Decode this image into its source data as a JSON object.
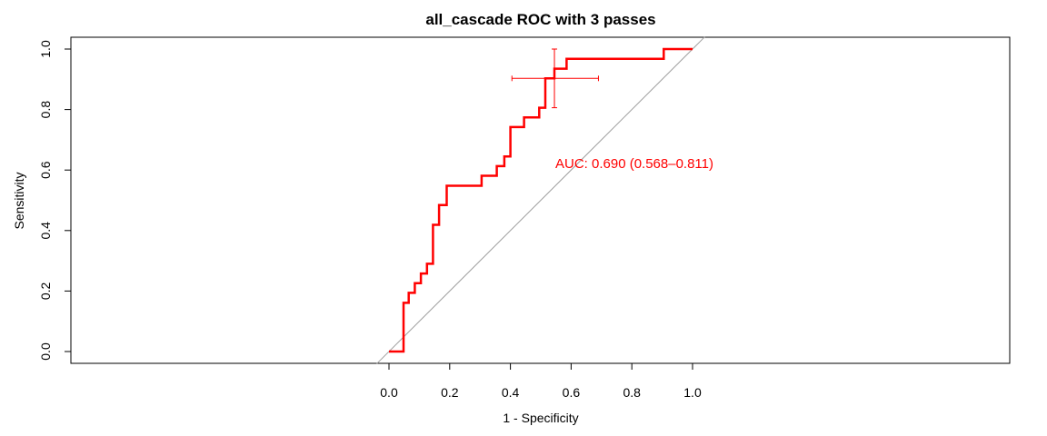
{
  "chart_data": {
    "type": "line",
    "title": "all_cascade ROC with 3 passes",
    "xlabel": "1 - Specificity",
    "ylabel": "Sensitivity",
    "xlim": [
      0,
      1
    ],
    "ylim": [
      0,
      1
    ],
    "xticks": [
      "0.0",
      "0.2",
      "0.4",
      "0.6",
      "0.8",
      "1.0"
    ],
    "yticks": [
      "0.0",
      "0.2",
      "0.4",
      "0.6",
      "0.8",
      "1.0"
    ],
    "grid": false,
    "legend": "none",
    "annotation": "AUC: 0.690 (0.568–0.811)",
    "colors": {
      "roc": "#ff0000",
      "diagonal": "#a0a0a0"
    },
    "series": [
      {
        "x": [
          0,
          0.048,
          0.048,
          0.065,
          0.065,
          0.085,
          0.085,
          0.105,
          0.105,
          0.125,
          0.125,
          0.145,
          0.145,
          0.165,
          0.165,
          0.19,
          0.19,
          0.305,
          0.305,
          0.355,
          0.355,
          0.38,
          0.38,
          0.4,
          0.4,
          0.445,
          0.445,
          0.495,
          0.495,
          0.515,
          0.515,
          0.545,
          0.545,
          0.585,
          0.585,
          0.605,
          0.605,
          0.62,
          0.62,
          0.905,
          0.905,
          1.0
        ],
        "y": [
          0,
          0,
          0.161,
          0.161,
          0.194,
          0.194,
          0.226,
          0.226,
          0.258,
          0.258,
          0.29,
          0.29,
          0.419,
          0.419,
          0.484,
          0.484,
          0.548,
          0.548,
          0.581,
          0.581,
          0.613,
          0.613,
          0.645,
          0.645,
          0.742,
          0.742,
          0.774,
          0.774,
          0.806,
          0.806,
          0.903,
          0.903,
          0.935,
          0.935,
          0.968,
          0.968,
          0.968,
          0.968,
          0.968,
          0.968,
          1.0,
          1.0
        ]
      }
    ],
    "crosshair": {
      "x": 0.545,
      "y": 0.903,
      "x_ci": [
        0.405,
        0.69
      ],
      "y_ci": [
        0.806,
        1.0
      ]
    }
  }
}
